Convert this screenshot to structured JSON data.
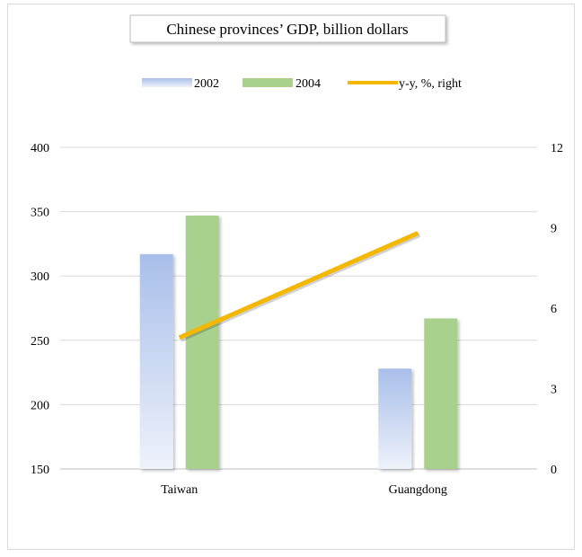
{
  "chart_data": {
    "type": "bar",
    "title": "Chinese provinces’ GDP, billion dollars",
    "categories": [
      "Taiwan",
      "Guangdong"
    ],
    "series": [
      {
        "name": "2002",
        "type": "bar",
        "axis": "left",
        "values": [
          317,
          228
        ],
        "color": "#a9bfea"
      },
      {
        "name": "2004",
        "type": "bar",
        "axis": "left",
        "values": [
          347,
          267
        ],
        "color": "#a9d18e"
      },
      {
        "name": "y-y, %, right",
        "type": "line",
        "axis": "right",
        "values": [
          4.9,
          8.8
        ],
        "color": "#f5b800"
      }
    ],
    "y_left": {
      "min": 150,
      "max": 400,
      "ticks": [
        "150",
        "200",
        "250",
        "300",
        "350",
        "400"
      ]
    },
    "y_right": {
      "min": 0,
      "max": 12,
      "ticks": [
        "0",
        "3",
        "6",
        "9",
        "12"
      ]
    },
    "grid": true,
    "legend_position": "top"
  }
}
